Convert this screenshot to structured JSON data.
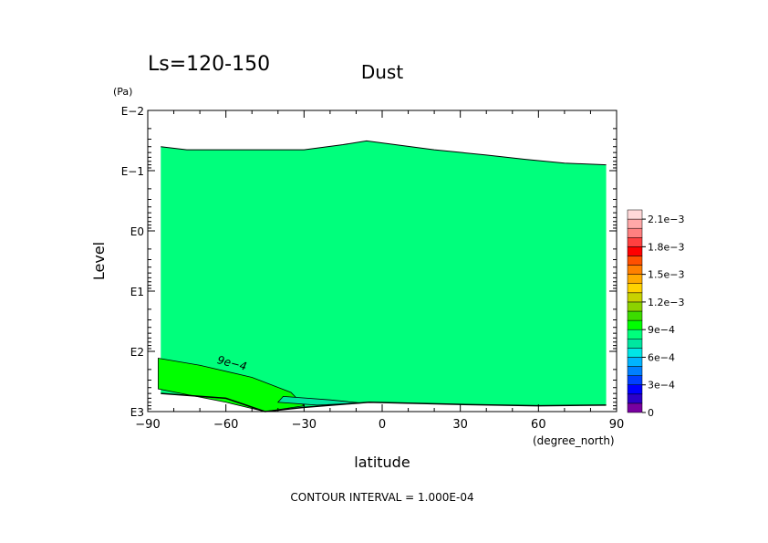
{
  "chart_data": {
    "type": "contour",
    "period_label": "Ls=120-150",
    "title": "Dust",
    "xlabel": "latitude",
    "x_unit": "(degree_north)",
    "ylabel": "Level",
    "y_unit": "(Pa)",
    "footer": "CONTOUR INTERVAL = 1.000E-04",
    "xlim": [
      -90,
      90
    ],
    "x_ticks": [
      {
        "value": -90,
        "label": "−90"
      },
      {
        "value": -60,
        "label": "−60"
      },
      {
        "value": -30,
        "label": "−30"
      },
      {
        "value": 0,
        "label": "0"
      },
      {
        "value": 30,
        "label": "30"
      },
      {
        "value": 60,
        "label": "60"
      },
      {
        "value": 90,
        "label": "90"
      }
    ],
    "y_scale": "log",
    "ylim": [
      1000,
      0.01
    ],
    "y_ticks": [
      {
        "value": 0.01,
        "label": "E−2"
      },
      {
        "value": 0.1,
        "label": "E−1"
      },
      {
        "value": 1,
        "label": "E0"
      },
      {
        "value": 10,
        "label": "E1"
      },
      {
        "value": 100,
        "label": "E2"
      },
      {
        "value": 1000,
        "label": "E3"
      }
    ],
    "contour_interval": 0.0001,
    "contour_labels": [
      {
        "text": "9e−4",
        "lat": -58,
        "p": 180
      }
    ],
    "field_top": [
      {
        "lat": -85,
        "p": 0.04
      },
      {
        "lat": -75,
        "p": 0.045
      },
      {
        "lat": -30,
        "p": 0.045
      },
      {
        "lat": -15,
        "p": 0.037
      },
      {
        "lat": -6,
        "p": 0.032
      },
      {
        "lat": 5,
        "p": 0.037
      },
      {
        "lat": 20,
        "p": 0.045
      },
      {
        "lat": 40,
        "p": 0.055
      },
      {
        "lat": 55,
        "p": 0.065
      },
      {
        "lat": 70,
        "p": 0.075
      },
      {
        "lat": 86,
        "p": 0.08
      }
    ],
    "field_bottom": [
      {
        "lat": -85,
        "p": 500
      },
      {
        "lat": -60,
        "p": 600
      },
      {
        "lat": -45,
        "p": 1000
      },
      {
        "lat": -30,
        "p": 850
      },
      {
        "lat": -5,
        "p": 700
      },
      {
        "lat": 30,
        "p": 760
      },
      {
        "lat": 60,
        "p": 800
      },
      {
        "lat": 86,
        "p": 780
      }
    ],
    "regions": [
      {
        "label": "1.0e-3",
        "color": "#00ff00",
        "points": [
          {
            "lat": -86,
            "p": 130
          },
          {
            "lat": -70,
            "p": 170
          },
          {
            "lat": -50,
            "p": 270
          },
          {
            "lat": -35,
            "p": 480
          },
          {
            "lat": -30,
            "p": 800
          },
          {
            "lat": -45,
            "p": 1000
          },
          {
            "lat": -60,
            "p": 700
          },
          {
            "lat": -86,
            "p": 420
          }
        ]
      },
      {
        "label": "7e-4",
        "color": "#00e6a0",
        "points": [
          {
            "lat": -38,
            "p": 560
          },
          {
            "lat": -20,
            "p": 640
          },
          {
            "lat": -8,
            "p": 720
          },
          {
            "lat": -25,
            "p": 780
          },
          {
            "lat": -40,
            "p": 700
          }
        ]
      }
    ],
    "colorbar": {
      "levels": [
        0,
        0.0001,
        0.0002,
        0.0003,
        0.0004,
        0.0005,
        0.0006,
        0.0007,
        0.0008,
        0.0009,
        0.001,
        0.0011,
        0.0012,
        0.0013,
        0.0014,
        0.0015,
        0.0016,
        0.0017,
        0.0018,
        0.0019,
        0.002,
        0.0021,
        0.0022
      ],
      "colors": [
        "#7800a0",
        "#2c00c8",
        "#0000ff",
        "#0040ff",
        "#0080ff",
        "#00b4ff",
        "#00e6e6",
        "#00e6a0",
        "#00ff7c",
        "#00ff00",
        "#3cdc00",
        "#8cd200",
        "#c8d200",
        "#ffd200",
        "#ffaa00",
        "#ff8000",
        "#ff5000",
        "#ff0000",
        "#ff4040",
        "#ff8080",
        "#ffa8a8",
        "#ffd8d8"
      ],
      "labels": [
        "0",
        "3e−4",
        "6e−4",
        "9e−4",
        "1.2e−3",
        "1.5e−3",
        "1.8e−3",
        "2.1e−3"
      ],
      "label_levels": [
        0,
        0.0003,
        0.0006,
        0.0009,
        0.0012,
        0.0015,
        0.0018,
        0.0021
      ]
    },
    "background_fill": "#00ff7c",
    "legend_position": "right",
    "grid": false
  }
}
